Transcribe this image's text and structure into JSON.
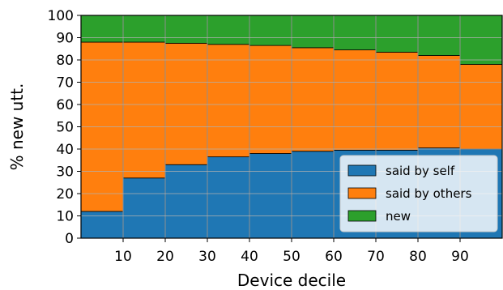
{
  "chart_data": {
    "type": "bar",
    "stacked": true,
    "xlabel": "Device decile",
    "ylabel": "% new utt.",
    "x_edges": [
      0,
      10,
      20,
      30,
      40,
      50,
      60,
      70,
      80,
      90,
      100
    ],
    "xticks": [
      10,
      20,
      30,
      40,
      50,
      60,
      70,
      80,
      90
    ],
    "xlim": [
      0,
      100
    ],
    "ylim": [
      0,
      100
    ],
    "yticks": [
      0,
      10,
      20,
      30,
      40,
      50,
      60,
      70,
      80,
      90,
      100
    ],
    "grid": true,
    "legend_position": "bottom-right",
    "series": [
      {
        "name": "said by self",
        "color": "#1f77b4",
        "values": [
          12,
          27,
          33,
          36.5,
          38,
          39,
          39.5,
          39.5,
          40.5,
          40
        ]
      },
      {
        "name": "said by others",
        "color": "#ff7f0e",
        "values": [
          76,
          61,
          54.5,
          50.5,
          48.5,
          46.5,
          45,
          44,
          41.5,
          38
        ]
      },
      {
        "name": "new",
        "color": "#2ca02c",
        "values": [
          12,
          12,
          12.5,
          13,
          13.5,
          14.5,
          15.5,
          16.5,
          18,
          22
        ]
      }
    ]
  }
}
